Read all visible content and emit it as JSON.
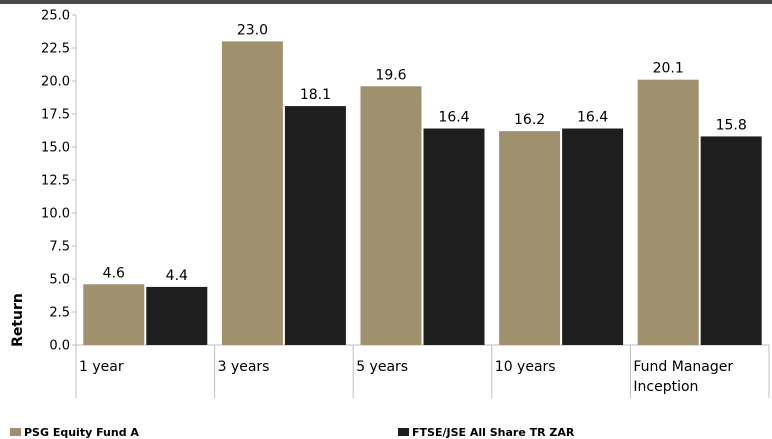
{
  "chart_data": {
    "type": "bar",
    "categories": [
      "1 year",
      "3 years",
      "5 years",
      "10 years",
      "Fund Manager Inception"
    ],
    "category_lines": [
      [
        "1 year"
      ],
      [
        "3 years"
      ],
      [
        "5 years"
      ],
      [
        "10 years"
      ],
      [
        "Fund Manager",
        "Inception"
      ]
    ],
    "series": [
      {
        "name": "PSG Equity Fund A",
        "values": [
          4.6,
          23.0,
          19.6,
          16.2,
          20.1
        ],
        "color": "#a0916e"
      },
      {
        "name": "FTSE/JSE All Share TR ZAR",
        "values": [
          4.4,
          18.1,
          16.4,
          16.4,
          15.8
        ],
        "color": "#1e1e1e"
      }
    ],
    "ylabel": "Return",
    "xlabel": "",
    "ylim": [
      0,
      25
    ],
    "yticks": [
      "0.0",
      "2.5",
      "5.0",
      "7.5",
      "10.0",
      "12.5",
      "15.0",
      "17.5",
      "20.0",
      "22.5",
      "25.0"
    ],
    "data_labels": [
      [
        "4.6",
        "23.0",
        "19.6",
        "16.2",
        "20.1"
      ],
      [
        "4.4",
        "18.1",
        "16.4",
        "16.4",
        "15.8"
      ]
    ],
    "grid": false,
    "legend_position": "bottom"
  }
}
